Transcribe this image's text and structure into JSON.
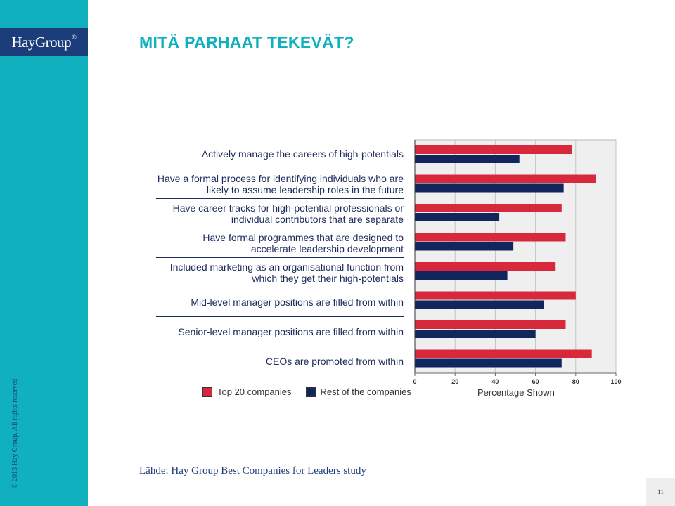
{
  "brand": {
    "logo": "HayGroup",
    "registered": "®"
  },
  "slide": {
    "title": "MITÄ PARHAAT TEKEVÄT?",
    "copyright": "© 2013 Hay Group. All rights reserved",
    "source": "Lähde: Hay Group Best Companies for Leaders study",
    "page_number": "11"
  },
  "colors": {
    "sidebar": "#11b0bf",
    "logo_bg": "#1b3d7a",
    "top20": "#d8283c",
    "rest": "#12265e",
    "plot_bg": "#efefef"
  },
  "chart_data": {
    "type": "bar",
    "orientation": "horizontal",
    "categories": [
      "Actively manage the careers of high-potentials",
      "Have a formal process for identifying individuals who are likely to assume leadership roles in the future",
      "Have career tracks for high-potential professionals or individual contributors that are separate",
      "Have formal programmes that are designed to accelerate leadership development",
      "Included marketing as an organisational function from which they get their high-potentials",
      "Mid-level manager positions are filled from within",
      "Senior-level manager positions are filled from within",
      "CEOs are promoted from within"
    ],
    "series": [
      {
        "name": "Top 20 companies",
        "values": [
          78,
          90,
          73,
          75,
          70,
          80,
          75,
          88
        ]
      },
      {
        "name": "Rest of the companies",
        "values": [
          52,
          74,
          42,
          49,
          46,
          64,
          60,
          73
        ]
      }
    ],
    "xlim": [
      0,
      100
    ],
    "xticks": [
      "0",
      "20",
      "40",
      "60",
      "80",
      "100"
    ],
    "xlabel": "Percentage Shown",
    "grid": true,
    "legend": "bottom"
  }
}
